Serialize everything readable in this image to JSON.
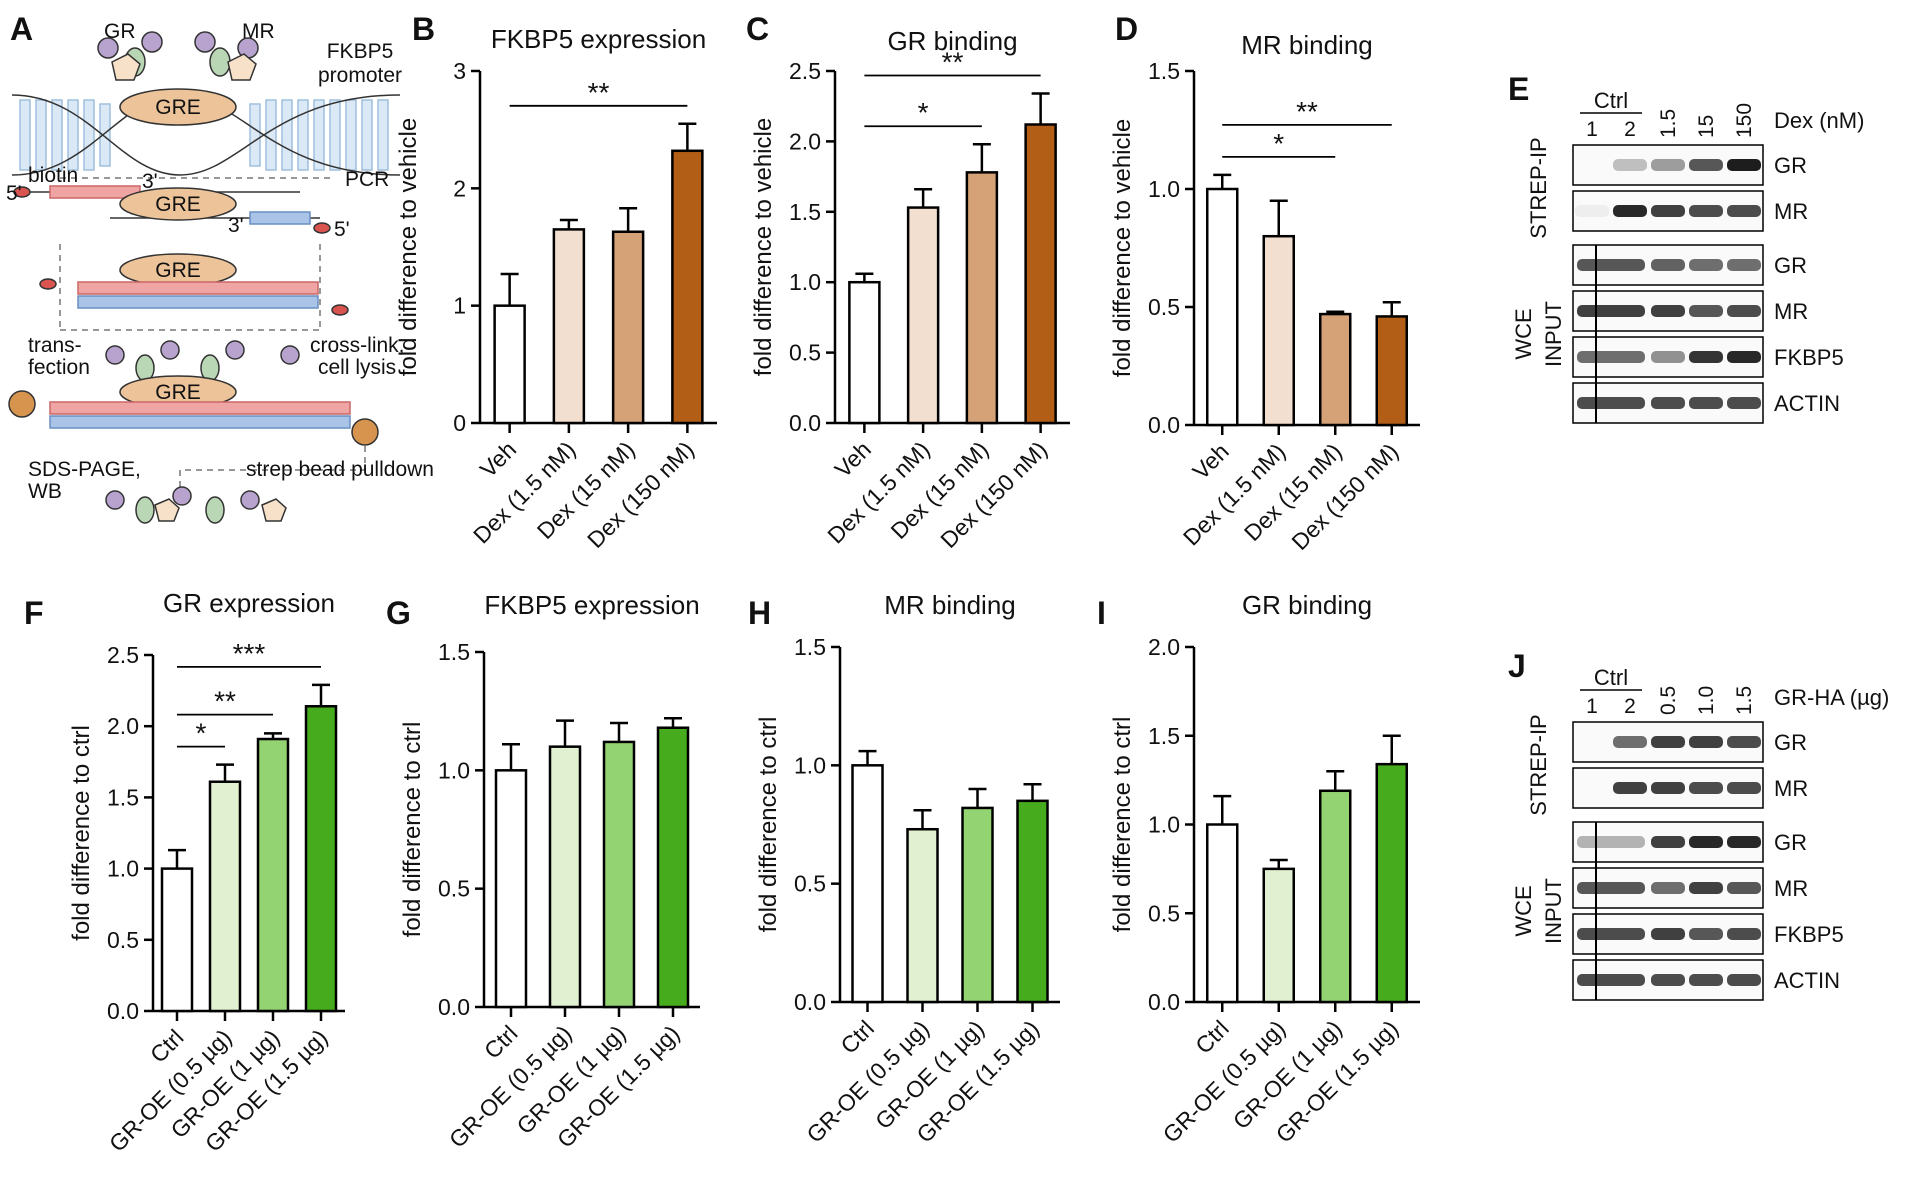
{
  "chart_data": [
    {
      "type": "bar",
      "panel": "B",
      "title": "FKBP5 expression",
      "ylabel": "fold difference to vehicle",
      "categories": [
        "Veh",
        "Dex (1.5 nM)",
        "Dex (15 nM)",
        "Dex (150 nM)"
      ],
      "values": [
        1.0,
        1.65,
        1.63,
        2.32
      ],
      "errors": [
        0.27,
        0.08,
        0.2,
        0.23
      ],
      "colors": [
        "#ffffff",
        "#f2dfd0",
        "#d4a276",
        "#b35e17"
      ],
      "ylim": [
        0,
        3
      ],
      "yticks": [
        0,
        1,
        2,
        3
      ],
      "significance": [
        {
          "label": "**",
          "between": [
            "Veh",
            "Dex (150 nM)"
          ]
        }
      ]
    },
    {
      "type": "bar",
      "panel": "C",
      "title": "GR binding",
      "ylabel": "fold difference to vehicle",
      "categories": [
        "Veh",
        "Dex (1.5 nM)",
        "Dex (15 nM)",
        "Dex (150 nM)"
      ],
      "values": [
        1.0,
        1.53,
        1.78,
        2.12
      ],
      "errors": [
        0.06,
        0.13,
        0.2,
        0.22
      ],
      "colors": [
        "#ffffff",
        "#f2dfd0",
        "#d4a276",
        "#b35e17"
      ],
      "ylim": [
        0,
        2.5
      ],
      "yticks": [
        {
          "value": 0,
          "label": "0.0"
        },
        0.5,
        {
          "value": 1,
          "label": "1.0"
        },
        1.5,
        {
          "value": 2,
          "label": "2.0"
        },
        2.5
      ],
      "significance": [
        {
          "label": "*",
          "between": [
            "Veh",
            "Dex (15 nM)"
          ]
        },
        {
          "label": "**",
          "between": [
            "Veh",
            "Dex (150 nM)"
          ]
        }
      ]
    },
    {
      "type": "bar",
      "panel": "D",
      "title": "MR binding",
      "ylabel": "fold difference to vehicle",
      "categories": [
        "Veh",
        "Dex (1.5 nM)",
        "Dex (15 nM)",
        "Dex (150 nM)"
      ],
      "values": [
        1.0,
        0.8,
        0.47,
        0.46
      ],
      "errors": [
        0.06,
        0.15,
        0.01,
        0.06
      ],
      "colors": [
        "#ffffff",
        "#f2dfd0",
        "#d4a276",
        "#b35e17"
      ],
      "ylim": [
        0,
        1.5
      ],
      "yticks": [
        {
          "value": 0,
          "label": "0.0"
        },
        0.5,
        {
          "value": 1,
          "label": "1.0"
        },
        1.5
      ],
      "significance": [
        {
          "label": "*",
          "between": [
            "Veh",
            "Dex (15 nM)"
          ]
        },
        {
          "label": "**",
          "between": [
            "Veh",
            "Dex (150 nM)"
          ]
        }
      ]
    },
    {
      "type": "bar",
      "panel": "F",
      "title": "GR expression",
      "ylabel": "fold difference to ctrl",
      "categories": [
        "Ctrl",
        "GR-OE (0.5 µg)",
        "GR-OE (1 µg)",
        "GR-OE (1.5 µg)"
      ],
      "values": [
        1.0,
        1.61,
        1.91,
        2.14
      ],
      "errors": [
        0.13,
        0.12,
        0.04,
        0.15
      ],
      "colors": [
        "#ffffff",
        "#e0f0d0",
        "#93d372",
        "#46ac1e"
      ],
      "ylim": [
        0,
        2.5
      ],
      "yticks": [
        {
          "value": 0,
          "label": "0.0"
        },
        0.5,
        {
          "value": 1,
          "label": "1.0"
        },
        1.5,
        {
          "value": 2,
          "label": "2.0"
        },
        2.5
      ],
      "significance": [
        {
          "label": "*",
          "between": [
            "Ctrl",
            "GR-OE (0.5 µg)"
          ]
        },
        {
          "label": "**",
          "between": [
            "Ctrl",
            "GR-OE (1 µg)"
          ]
        },
        {
          "label": "***",
          "between": [
            "Ctrl",
            "GR-OE (1.5 µg)"
          ]
        }
      ]
    },
    {
      "type": "bar",
      "panel": "G",
      "title": "FKBP5 expression",
      "ylabel": "fold difference to ctrl",
      "categories": [
        "Ctrl",
        "GR-OE (0.5 µg)",
        "GR-OE (1 µg)",
        "GR-OE (1.5 µg)"
      ],
      "values": [
        1.0,
        1.1,
        1.12,
        1.18
      ],
      "errors": [
        0.11,
        0.11,
        0.08,
        0.04
      ],
      "colors": [
        "#ffffff",
        "#e0f0d0",
        "#93d372",
        "#46ac1e"
      ],
      "ylim": [
        0,
        1.5
      ],
      "yticks": [
        {
          "value": 0,
          "label": "0.0"
        },
        0.5,
        {
          "value": 1,
          "label": "1.0"
        },
        1.5
      ]
    },
    {
      "type": "bar",
      "panel": "H",
      "title": "MR binding",
      "ylabel": "fold difference to ctrl",
      "categories": [
        "Ctrl",
        "GR-OE (0.5 µg)",
        "GR-OE (1 µg)",
        "GR-OE (1.5 µg)"
      ],
      "values": [
        1.0,
        0.73,
        0.82,
        0.85
      ],
      "errors": [
        0.06,
        0.08,
        0.08,
        0.07
      ],
      "colors": [
        "#ffffff",
        "#e0f0d0",
        "#93d372",
        "#46ac1e"
      ],
      "ylim": [
        0,
        1.5
      ],
      "yticks": [
        {
          "value": 0,
          "label": "0.0"
        },
        0.5,
        {
          "value": 1,
          "label": "1.0"
        },
        1.5
      ]
    },
    {
      "type": "bar",
      "panel": "I",
      "title": "GR binding",
      "ylabel": "fold difference to ctrl",
      "categories": [
        "Ctrl",
        "GR-OE (0.5 µg)",
        "GR-OE (1 µg)",
        "GR-OE (1.5 µg)"
      ],
      "values": [
        1.0,
        0.75,
        1.19,
        1.34
      ],
      "errors": [
        0.16,
        0.05,
        0.11,
        0.16
      ],
      "colors": [
        "#ffffff",
        "#e0f0d0",
        "#93d372",
        "#46ac1e"
      ],
      "ylim": [
        0,
        2.0
      ],
      "yticks": [
        {
          "value": 0,
          "label": "0.0"
        },
        0.5,
        {
          "value": 1,
          "label": "1.0"
        },
        1.5,
        {
          "value": 2,
          "label": "2.0"
        }
      ]
    }
  ],
  "diagram": {
    "panel": "A",
    "labels": {
      "gr": "GR",
      "mr": "MR",
      "promoter1": "FKBP5",
      "promoter2": "promoter",
      "gre1": "GRE",
      "gre2": "GRE",
      "gre3": "GRE",
      "gre4": "GRE",
      "biotin": "biotin",
      "pcr": "PCR",
      "five1": "5'",
      "three1": "3'",
      "three2": "3'",
      "five2": "5'",
      "transfection1": "trans-",
      "transfection2": "fection",
      "crosslink1": "cross-link,",
      "crosslink2": "cell lysis",
      "sds1": "SDS-PAGE,",
      "sds2": "WB",
      "pulldown": "strep bead pulldown"
    }
  },
  "blots": [
    {
      "panel": "E",
      "control": "Ctrl",
      "lanes": [
        "1",
        "2",
        "1.5",
        "15",
        "150"
      ],
      "treatment": "Dex (nM)",
      "groups": [
        {
          "label": [
            "STREP-IP"
          ],
          "rows": [
            "GR",
            "MR"
          ]
        },
        {
          "label": [
            "WCE",
            "INPUT"
          ],
          "rows": [
            "GR",
            "MR",
            "FKBP5",
            "ACTIN"
          ]
        }
      ]
    },
    {
      "panel": "J",
      "control": "Ctrl",
      "lanes": [
        "1",
        "2",
        "0.5",
        "1.0",
        "1.5"
      ],
      "treatment": "GR-HA (µg)",
      "groups": [
        {
          "label": [
            "STREP-IP"
          ],
          "rows": [
            "GR",
            "MR"
          ]
        },
        {
          "label": [
            "WCE",
            "INPUT"
          ],
          "rows": [
            "GR",
            "MR",
            "FKBP5",
            "ACTIN"
          ]
        }
      ]
    }
  ]
}
